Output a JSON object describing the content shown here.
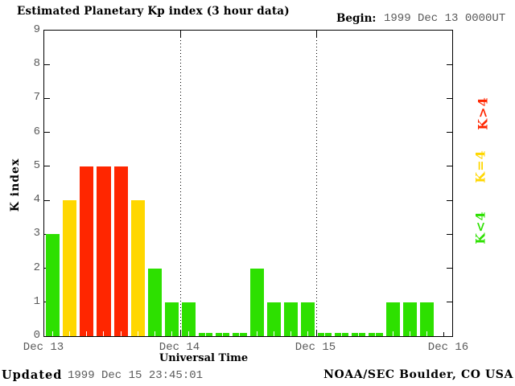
{
  "title": "Estimated Planetary Kp index (3 hour data)",
  "begin": {
    "label": "Begin:",
    "value": "1999 Dec 13 0000UT"
  },
  "y_axis": {
    "label": "K index",
    "tick_labels": [
      "0",
      "1",
      "2",
      "3",
      "4",
      "5",
      "6",
      "7",
      "8",
      "9"
    ]
  },
  "x_axis": {
    "label": "Universal Time",
    "day_labels": [
      "Dec 13",
      "Dec 14",
      "Dec 15",
      "Dec 16"
    ]
  },
  "legend": [
    {
      "text": "K>4",
      "key": "gt4",
      "color": "#ff2600"
    },
    {
      "text": "K=4",
      "key": "eq4",
      "color": "#ffd700"
    },
    {
      "text": "K<4",
      "key": "lt4",
      "color": "#2de000"
    }
  ],
  "footer": {
    "updated_label": "Updated",
    "updated_value": "1999 Dec 15 23:45:01",
    "credit": "NOAA/SEC Boulder, CO USA"
  },
  "colors": {
    "bar_green": "#2de000",
    "bar_yellow": "#ffd700",
    "bar_red": "#ff2600",
    "axis": "#000000",
    "muted_text": "#5a5a5a",
    "background": "#ffffff"
  },
  "chart_data": {
    "type": "bar",
    "title": "Estimated Planetary Kp index (3 hour data)",
    "xlabel": "Universal Time",
    "ylabel": "K index",
    "ylim": [
      0,
      9
    ],
    "hours_per_bar": 3,
    "begin": "1999 Dec 13 0000UT",
    "days": [
      {
        "date": "Dec 13",
        "values": [
          3,
          4,
          5,
          5,
          5,
          4,
          2,
          1
        ]
      },
      {
        "date": "Dec 14",
        "values": [
          1,
          0,
          0,
          0,
          2,
          1,
          1,
          1
        ]
      },
      {
        "date": "Dec 15",
        "values": [
          0,
          0,
          0,
          0,
          1,
          1,
          1,
          null
        ]
      }
    ],
    "color_rules": {
      "k_lt_4": "#2de000",
      "k_eq_4": "#ffd700",
      "k_gt_4": "#ff2600"
    },
    "grid": "dotted vertical lines at day boundaries",
    "legend_position": "right",
    "legend_entries": [
      "K>4",
      "K=4",
      "K<4"
    ]
  }
}
